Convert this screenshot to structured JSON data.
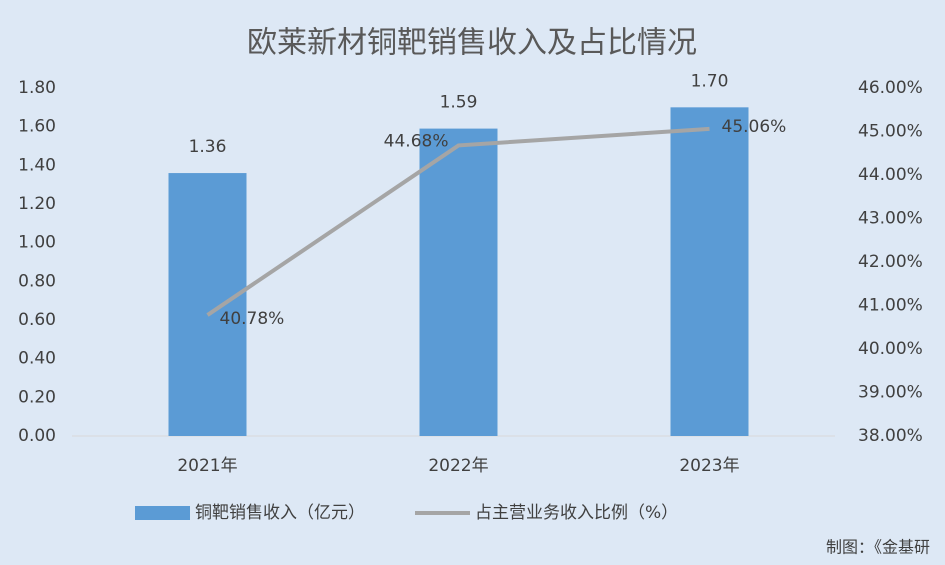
{
  "chart_data": {
    "type": "bar",
    "title": "欧莱新材铜靶销售收入及占比情况",
    "categories": [
      "2021年",
      "2022年",
      "2023年"
    ],
    "series": [
      {
        "name": "铜靶销售收入（亿元）",
        "type": "bar",
        "color": "#5b9bd5",
        "values": [
          1.36,
          1.59,
          1.7
        ],
        "value_labels": [
          "1.36",
          "1.59",
          "1.70"
        ]
      },
      {
        "name": "占主营业务收入比例（%）",
        "type": "line",
        "axis": "y2",
        "color": "#a5a5a5",
        "values": [
          40.78,
          44.68,
          45.06
        ],
        "value_labels": [
          "40.78%",
          "44.68%",
          "45.06%"
        ]
      }
    ],
    "ylim": [
      0,
      1.8
    ],
    "yticks": [
      {
        "value": 0,
        "label": "0.00"
      },
      {
        "value": 0.2,
        "label": "0.20"
      },
      {
        "value": 0.4,
        "label": "0.40"
      },
      {
        "value": 0.6,
        "label": "0.60"
      },
      {
        "value": 0.8,
        "label": "0.80"
      },
      {
        "value": 1,
        "label": "1.00"
      },
      {
        "value": 1.2,
        "label": "1.20"
      },
      {
        "value": 1.4,
        "label": "1.40"
      },
      {
        "value": 1.6,
        "label": "1.60"
      },
      {
        "value": 1.8,
        "label": "1.80"
      }
    ],
    "y2lim": [
      38,
      46
    ],
    "y2ticks": [
      {
        "value": 38,
        "label": "38.00%"
      },
      {
        "value": 39,
        "label": "39.00%"
      },
      {
        "value": 40,
        "label": "40.00%"
      },
      {
        "value": 41,
        "label": "41.00%"
      },
      {
        "value": 42,
        "label": "42.00%"
      },
      {
        "value": 43,
        "label": "43.00%"
      },
      {
        "value": 44,
        "label": "44.00%"
      },
      {
        "value": 45,
        "label": "45.00%"
      },
      {
        "value": 46,
        "label": "46.00%"
      }
    ],
    "legend": "bottom",
    "source": "制图：《金基研"
  }
}
